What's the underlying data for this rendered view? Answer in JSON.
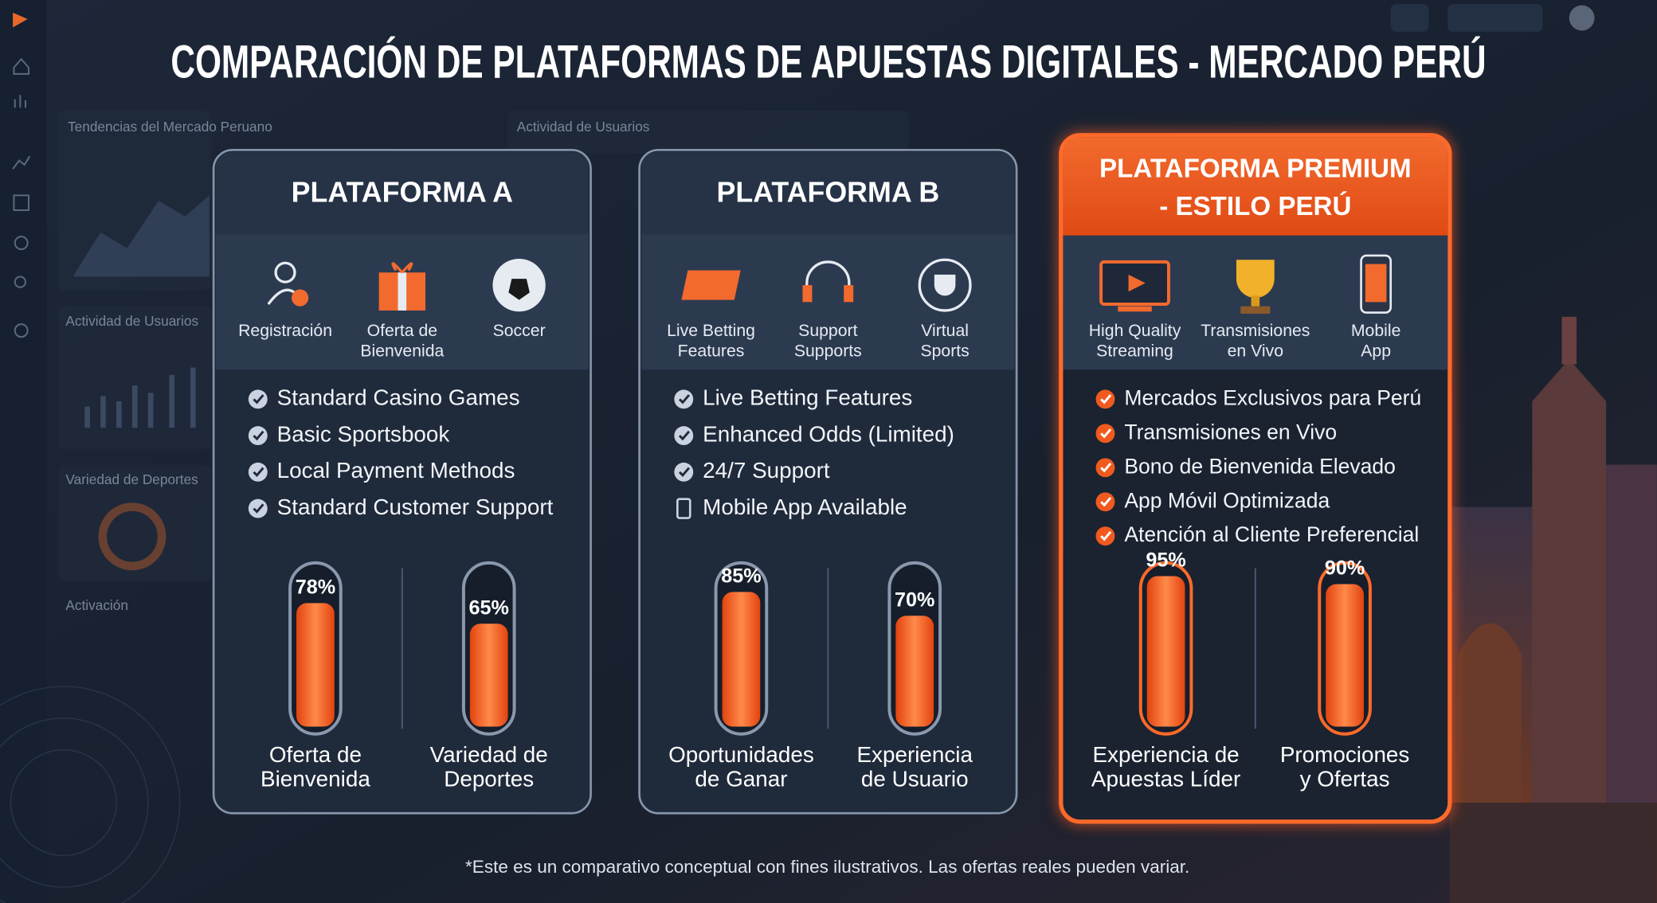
{
  "header": {
    "title": "COMPARACIÓN DE PLATAFORMAS DE APUESTAS DIGITALES - MERCADO PERÚ"
  },
  "background_panels": [
    "Tendencias del Mercado Peruano",
    "Actividad de Usuarios",
    "Actividad de Usuarios",
    "Variedad de Deportes",
    "Activación"
  ],
  "cards": [
    {
      "title": [
        "PLATAFORMA A"
      ],
      "icons": [
        [
          "Registración"
        ],
        [
          "Oferta de",
          "Bienvenida"
        ],
        [
          "Soccer"
        ]
      ],
      "features": [
        "Standard Casino Games",
        "Basic Sportsbook",
        "Local Payment Methods",
        "Standard Customer Support"
      ],
      "meters": [
        {
          "label": [
            "Oferta de",
            "Bienvenida"
          ],
          "value": 78,
          "value_label": "78%"
        },
        {
          "label": [
            "Variedad de",
            "Deportes"
          ],
          "value": 65,
          "value_label": "65%"
        }
      ]
    },
    {
      "title": [
        "PLATAFORMA B"
      ],
      "icons": [
        [
          "Live Betting",
          "Features"
        ],
        [
          "Support",
          "Supports"
        ],
        [
          "Virtual",
          "Sports"
        ]
      ],
      "features": [
        "Live Betting Features",
        "Enhanced Odds (Limited)",
        "24/7 Support",
        "Mobile App Available"
      ],
      "meters": [
        {
          "label": [
            "Oportunidades",
            "de Ganar"
          ],
          "value": 85,
          "value_label": "85%"
        },
        {
          "label": [
            "Experiencia",
            "de Usuario"
          ],
          "value": 70,
          "value_label": "70%"
        }
      ]
    },
    {
      "title": [
        "PLATAFORMA PREMIUM",
        "- ESTILO PERÚ"
      ],
      "icons": [
        [
          "High Quality",
          "Streaming"
        ],
        [
          "Transmisiones",
          "en Vivo"
        ],
        [
          "Mobile",
          "App"
        ]
      ],
      "features": [
        "Mercados Exclusivos para Perú",
        "Transmisiones en Vivo",
        "Bono de Bienvenida Elevado",
        "App Móvil Optimizada",
        "Atención al Cliente Preferencial"
      ],
      "meters": [
        {
          "label": [
            "Experiencia de",
            "Apuestas Líder"
          ],
          "value": 95,
          "value_label": "95%"
        },
        {
          "label": [
            "Promociones",
            "y Ofertas"
          ],
          "value": 90,
          "value_label": "90%"
        }
      ]
    }
  ],
  "footnote": "*Este es un comparativo conceptual con fines ilustrativos. Las ofertas reales pueden variar."
}
